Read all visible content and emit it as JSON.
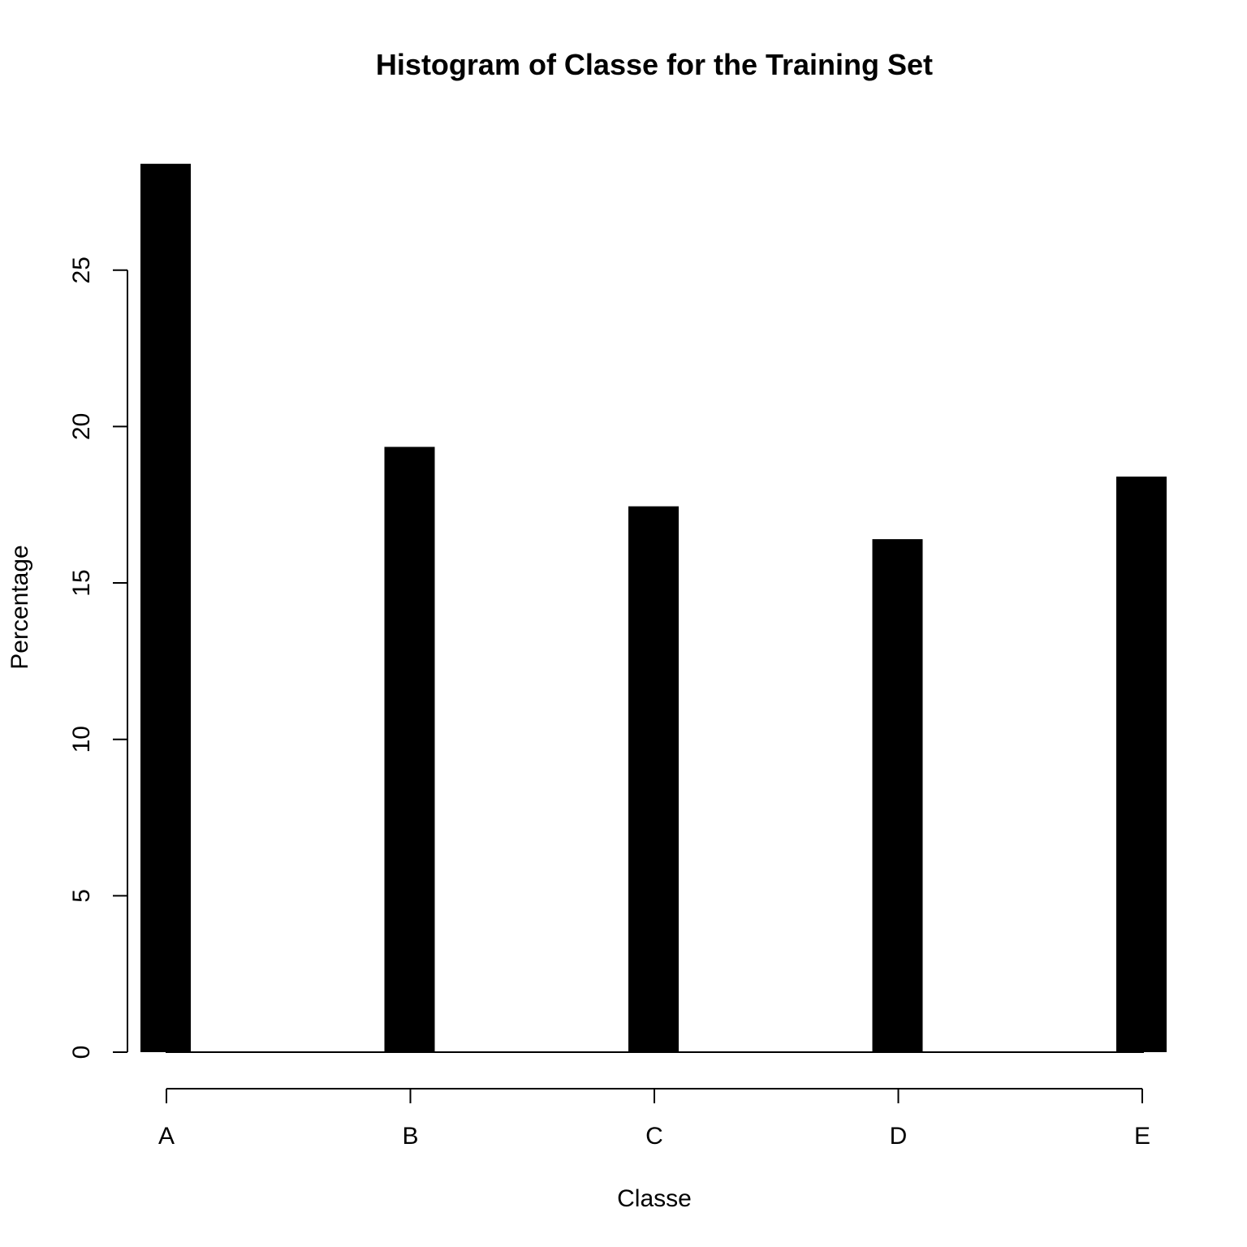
{
  "chart_data": {
    "type": "bar",
    "title": "Histogram of Classe for the Training Set",
    "xlabel": "Classe",
    "ylabel": "Percentage",
    "categories": [
      "A",
      "B",
      "C",
      "D",
      "E"
    ],
    "values": [
      28.4,
      19.35,
      17.45,
      16.4,
      18.4
    ],
    "yticks": [
      0,
      5,
      10,
      15,
      20,
      25
    ],
    "ylim": [
      0,
      28.4
    ],
    "grid": false,
    "legend": "none",
    "bar_color": "#000000"
  }
}
